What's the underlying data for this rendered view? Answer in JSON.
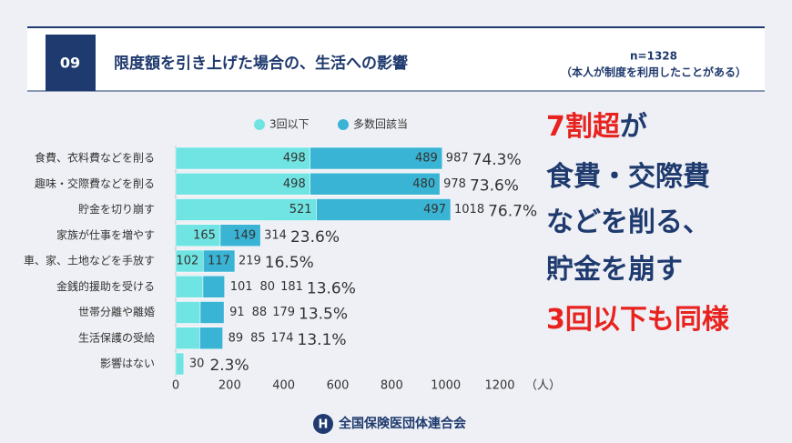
{
  "header": {
    "number": "09",
    "title": "限度額を引き上げた場合の、生活への影響",
    "sample": "n=1328",
    "note": "（本人が制度を利用したことがある）"
  },
  "chart_data": {
    "type": "stacked-bar-horizontal",
    "categories": [
      "食費、衣料費などを削る",
      "趣味・交際費などを削る",
      "貯金を切り崩す",
      "家族が仕事を増やす",
      "車、家、土地などを手放す",
      "金銭的援助を受ける",
      "世帯分離や離婚",
      "生活保護の受給",
      "影響はない"
    ],
    "series": [
      {
        "name": "3回以下",
        "color": "#6fe4e2",
        "values": [
          498,
          498,
          521,
          165,
          102,
          101,
          91,
          89,
          30
        ]
      },
      {
        "name": "多数回該当",
        "color": "#3ab4d4",
        "values": [
          489,
          480,
          497,
          149,
          117,
          80,
          88,
          85,
          null
        ]
      }
    ],
    "totals": [
      987,
      978,
      1018,
      314,
      219,
      181,
      179,
      174,
      null
    ],
    "share_labels": [
      "74.3%",
      "73.6%",
      "76.7%",
      "23.6%",
      "16.5%",
      "13.6%",
      "13.5%",
      "13.1%",
      "2.3%"
    ],
    "xlim": [
      0,
      1200
    ],
    "xticks": [
      0,
      200,
      400,
      600,
      800,
      1000,
      1200
    ],
    "x_unit": "（人）"
  },
  "callout": [
    [
      {
        "text": "7割超",
        "accent": true
      },
      {
        "text": "が",
        "accent": false
      }
    ],
    [
      {
        "text": "食費・交際費",
        "accent": false
      }
    ],
    [
      {
        "text": "などを削る、",
        "accent": false
      }
    ],
    [
      {
        "text": "貯金を崩す",
        "accent": false
      }
    ],
    [
      {
        "text": "3回以下も同様",
        "accent": true
      }
    ]
  ],
  "footer": {
    "org": "全国保険医団体連合会"
  }
}
